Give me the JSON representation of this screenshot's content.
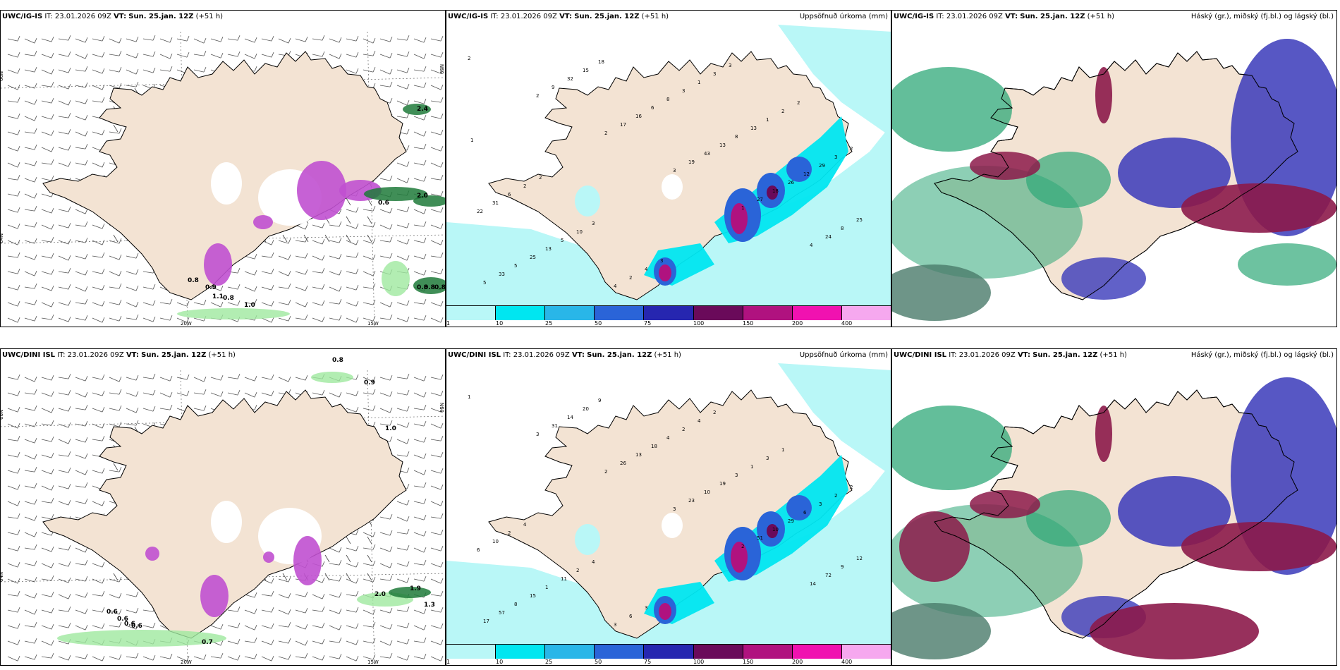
{
  "panels": [
    {
      "id": "ul",
      "model": "UWC/IG-IS",
      "it": "IT: 23.01.2026 09Z",
      "vt_label": "VT:",
      "vt": "Sun. 25.jan. 12Z",
      "lead": "(+51 h)",
      "right_title": "",
      "lat_labels": [
        "66N",
        "64N",
        "65N"
      ],
      "lon_labels": [
        "20W",
        "15W"
      ],
      "values": [
        "0.8",
        "0.9",
        "1.1",
        "0.8",
        "1.0",
        "0.8",
        "0.8",
        "0.8",
        "0.6",
        "2.0",
        "2.4"
      ]
    },
    {
      "id": "um",
      "model": "UWC/IG-IS",
      "it": "IT: 23.01.2026 09Z",
      "vt_label": "VT:",
      "vt": "Sun. 25.jan. 12Z",
      "lead": "(+51 h)",
      "right_title": "Uppsöfnuð úrkoma (mm)",
      "values": [
        "2",
        "2",
        "2",
        "3",
        "1",
        "4",
        "5",
        "9",
        "17",
        "19",
        "27",
        "24",
        "33",
        "32",
        "16",
        "43",
        "18",
        "8",
        "5",
        "15",
        "6",
        "13",
        "26",
        "25",
        "25",
        "18",
        "8",
        "8",
        "12",
        "22",
        "13",
        "4",
        "3",
        "13",
        "29",
        "31",
        "5",
        "2",
        "1",
        "1",
        "3",
        "6",
        "10",
        "4",
        "3",
        "2",
        "2",
        "2",
        "3",
        "3",
        "3",
        "2",
        "1",
        "2"
      ],
      "colorbar_labels": [
        "1",
        "10",
        "25",
        "50",
        "75",
        "100",
        "150",
        "200",
        "400"
      ]
    },
    {
      "id": "ur",
      "model": "UWC/IG-IS",
      "it": "IT: 23.01.2026 09Z",
      "vt_label": "VT:",
      "vt": "Sun. 25.jan. 12Z",
      "lead": "(+51 h)",
      "right_title": "Háský (gr.), miðský (fj.bl.) og lágský (bl.)"
    },
    {
      "id": "ll",
      "model": "UWC/DINI ISL",
      "it": "IT: 23.01.2026 09Z",
      "vt_label": "VT:",
      "vt": "Sun. 25.jan. 12Z",
      "lead": "(+51 h)",
      "right_title": "",
      "lat_labels": [
        "66N",
        "64N",
        "65N"
      ],
      "lon_labels": [
        "20W",
        "15W"
      ],
      "values": [
        "0.8",
        "0.9",
        "1.0",
        "0.6",
        "0.6",
        "0.6",
        "0.6",
        "0.7",
        "2.0",
        "1.9",
        "1.3"
      ]
    },
    {
      "id": "lm",
      "model": "UWC/DINI ISL",
      "it": "IT: 23.01.2026 09Z",
      "vt_label": "VT:",
      "vt": "Sun. 25.jan. 12Z",
      "lead": "(+51 h)",
      "right_title": "Uppsöfnuð úrkoma (mm)",
      "values": [
        "1",
        "3",
        "2",
        "3",
        "2",
        "14",
        "17",
        "31",
        "26",
        "23",
        "51",
        "72",
        "57",
        "14",
        "13",
        "10",
        "10",
        "9",
        "8",
        "20",
        "18",
        "19",
        "29",
        "12",
        "15",
        "9",
        "4",
        "3",
        "6",
        "6",
        "1",
        "3",
        "2",
        "1",
        "3",
        "10",
        "11",
        "6",
        "4",
        "3",
        "2",
        "2",
        "2",
        "3",
        "2",
        "1",
        "2",
        "4",
        "4"
      ],
      "colorbar_labels": [
        "1",
        "10",
        "25",
        "50",
        "75",
        "100",
        "150",
        "200",
        "400"
      ]
    },
    {
      "id": "lr",
      "model": "UWC/DINI ISL",
      "it": "IT: 23.01.2026 09Z",
      "vt_label": "VT:",
      "vt": "Sun. 25.jan. 12Z",
      "lead": "(+51 h)",
      "right_title": "Háský (gr.), miðský (fj.bl.) og lágský (bl.)"
    }
  ],
  "colors": {
    "land": "#f3e3d3",
    "precip_light": "#b9f7f7",
    "precip_cyan": "#00e6f0",
    "precip_mid": "#29b6e8",
    "precip_blue": "#2a64d8",
    "precip_dark": "#2626b0",
    "precip_purple": "#6a0a5a",
    "precip_magenta": "#b0127f",
    "precip_pink": "#f012b0",
    "precip_light_pink": "#f6a8ef",
    "snow_purple": "#c050d0",
    "green_band": "#9fe89f",
    "cloud_high": "#2fa878",
    "cloud_mid": "#3a3aba",
    "cloud_low": "#8c1a4a",
    "cloud_sea": "#4a7a6a"
  }
}
